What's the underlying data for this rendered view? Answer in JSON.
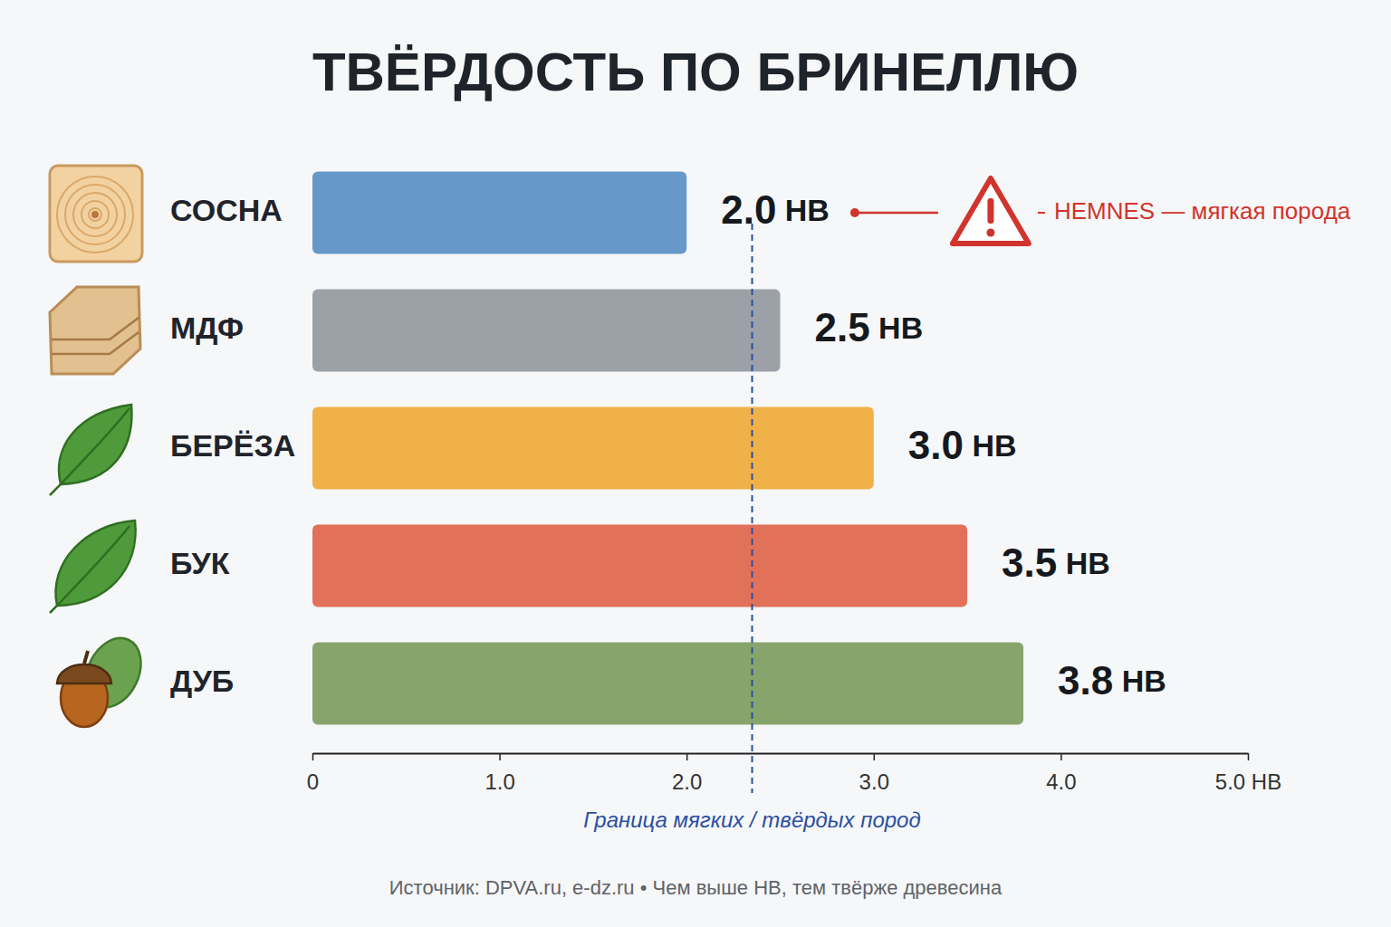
{
  "chart_data": {
    "type": "bar",
    "orientation": "horizontal",
    "title": "ТВЁРДОСТЬ ПО БРИНЕЛЛЮ",
    "categories": [
      "СОСНА",
      "МДФ",
      "БЕРЁЗА",
      "БУК",
      "ДУБ"
    ],
    "values": [
      2.0,
      2.5,
      3.0,
      3.5,
      3.8
    ],
    "value_labels": [
      "2.0 HB",
      "2.5 HB",
      "3.0 HB",
      "3.5 HB",
      "3.8 HB"
    ],
    "colors": [
      "#6699c9",
      "#9ba1a7",
      "#f0b148",
      "#e2715a",
      "#88a46d"
    ],
    "xlim": [
      0,
      5
    ],
    "xticks": [
      0,
      {
        "value": 1,
        "label": "1.0"
      },
      {
        "value": 2,
        "label": "2.0"
      },
      {
        "value": 3,
        "label": "3.0"
      },
      {
        "value": 4,
        "label": "4.0"
      },
      {
        "value": 5,
        "label": "5.0 HB"
      }
    ],
    "grid": false,
    "data_labels": true,
    "threshold": {
      "value": 2.35,
      "label": "Граница мягких / твёрдых пород"
    },
    "annotation": {
      "text": "HEMNES — мягкая порода",
      "target": "СОСНА"
    },
    "caption": "Источник: DPVA.ru, e-dz.ru • Чем выше HB, тем твёрже древесина"
  }
}
